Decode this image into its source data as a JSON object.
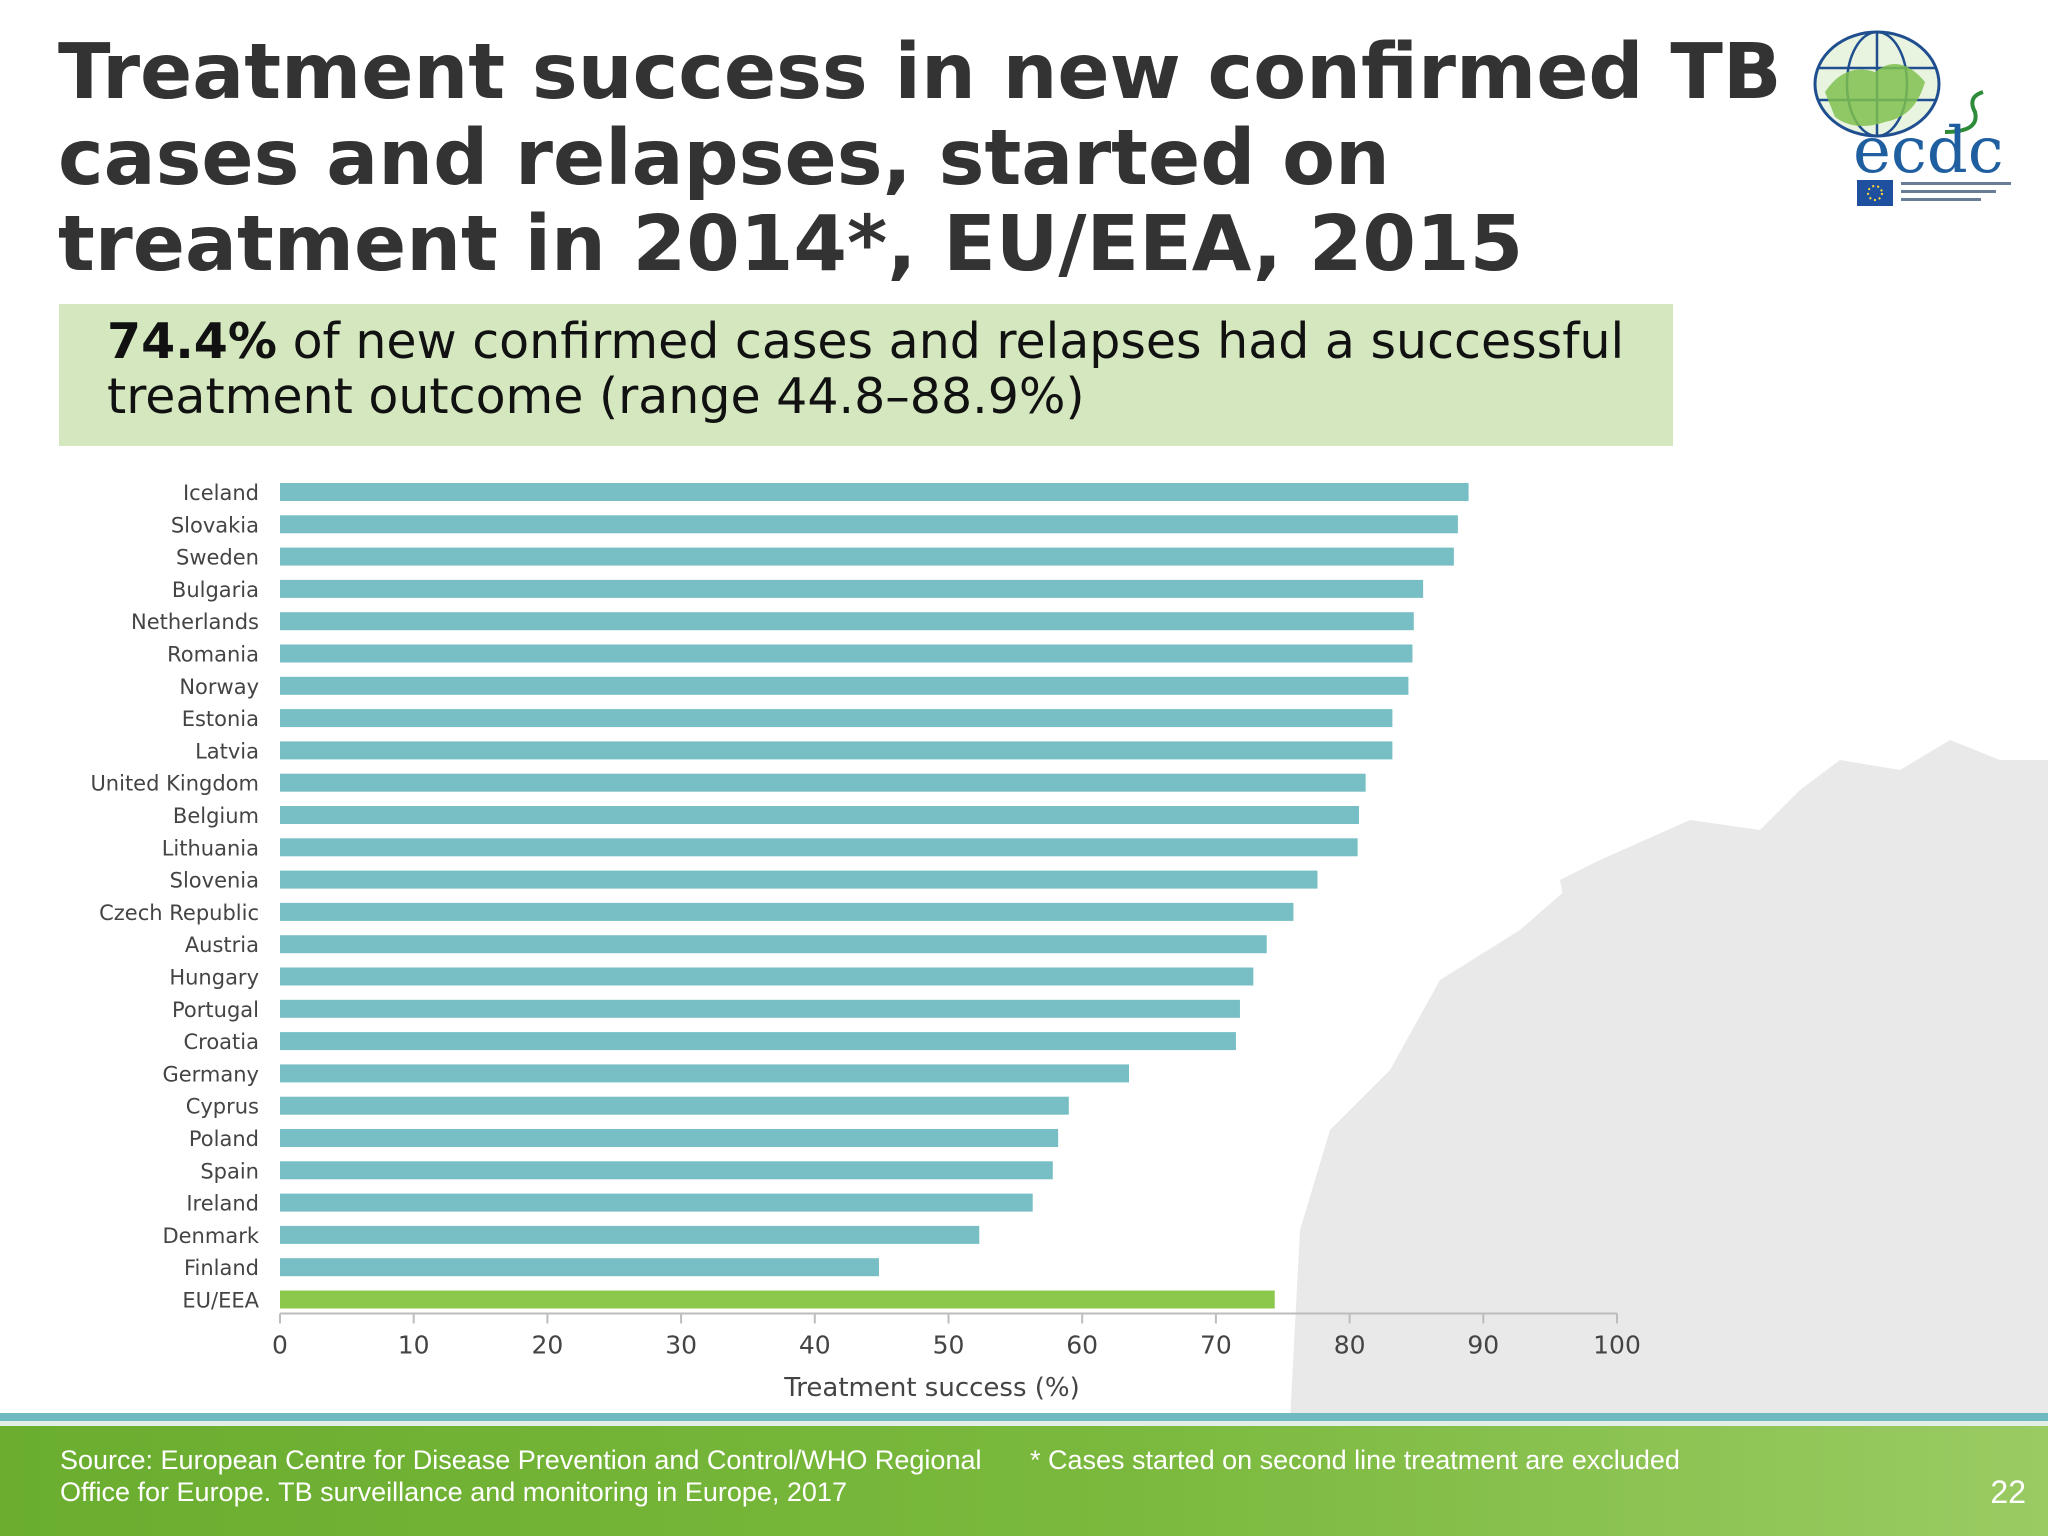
{
  "slide": {
    "title": "Treatment success in new confirmed TB cases and relapses, started on treatment in 2014*, EU/EEA, 2015",
    "callout": {
      "highlight": "74.4%",
      "text": " of new confirmed cases and relapses had a successful treatment outcome (range 44.8–88.9%)"
    },
    "logo_text": "ecdc",
    "footer": {
      "source": "Source: European Centre for Disease Prevention and Control/WHO Regional Office for Europe. TB surveillance and monitoring in Europe, 2017",
      "note": "* Cases started on second line treatment are excluded",
      "page_number": "22"
    }
  },
  "colors": {
    "bar": "#77bfc5",
    "highlight_bar": "#8cc84b",
    "footer_green": "#76b53b",
    "callout_bg": "#d4e7bf",
    "title": "#333333"
  },
  "chart_data": {
    "type": "bar",
    "orientation": "horizontal",
    "xlabel": "Treatment success (%)",
    "xlim": [
      0,
      100
    ],
    "xticks": [
      0,
      10,
      20,
      30,
      40,
      50,
      60,
      70,
      80,
      90,
      100
    ],
    "grid": false,
    "categories": [
      "Iceland",
      "Slovakia",
      "Sweden",
      "Bulgaria",
      "Netherlands",
      "Romania",
      "Norway",
      "Estonia",
      "Latvia",
      "United Kingdom",
      "Belgium",
      "Lithuania",
      "Slovenia",
      "Czech Republic",
      "Austria",
      "Hungary",
      "Portugal",
      "Croatia",
      "Germany",
      "Cyprus",
      "Poland",
      "Spain",
      "Ireland",
      "Denmark",
      "Finland",
      "EU/EEA"
    ],
    "values": [
      88.9,
      88.1,
      87.8,
      85.5,
      84.8,
      84.7,
      84.4,
      83.2,
      83.2,
      81.2,
      80.7,
      80.6,
      77.6,
      75.8,
      73.8,
      72.8,
      71.8,
      71.5,
      63.5,
      59.0,
      58.2,
      57.8,
      56.3,
      52.3,
      44.8,
      74.4
    ],
    "highlight_category": "EU/EEA"
  }
}
